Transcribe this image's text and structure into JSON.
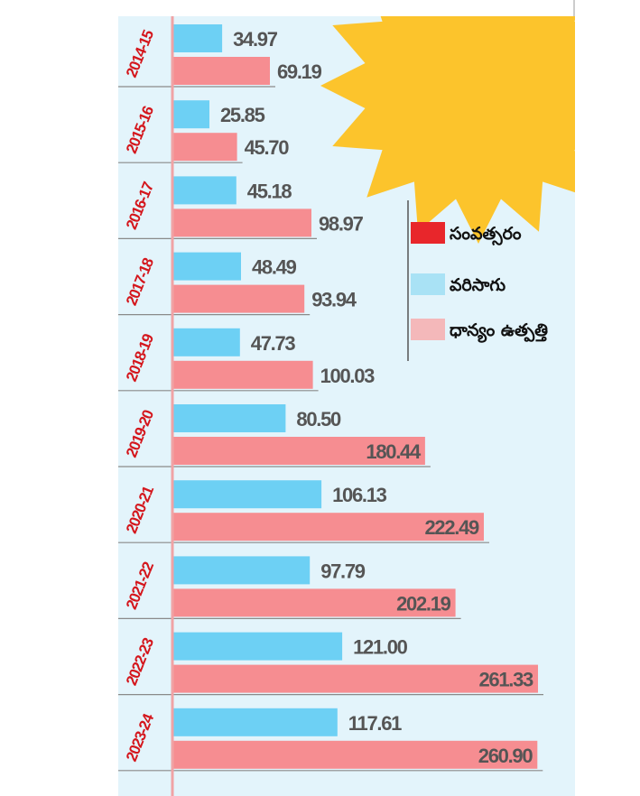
{
  "chart_data": {
    "type": "bar",
    "orientation": "horizontal",
    "categories": [
      "2014-15",
      "2015-16",
      "2016-17",
      "2017-18",
      "2018-19",
      "2019-20",
      "2020-21",
      "2021-22",
      "2022-23",
      "2023-24"
    ],
    "series": [
      {
        "name": "వరిసాగు",
        "color": "#6dd0f4",
        "values": [
          34.97,
          25.85,
          45.18,
          48.49,
          47.73,
          80.5,
          106.13,
          97.79,
          121.0,
          117.61
        ],
        "labels": [
          "34.97",
          "25.85",
          "45.18",
          "48.49",
          "47.73",
          "80.50",
          "106.13",
          "97.79",
          "121.00",
          "117.61"
        ]
      },
      {
        "name": "ధాన్యం ఉత్పత్తి",
        "color": "#f68d91",
        "values": [
          69.19,
          45.7,
          98.97,
          93.94,
          100.03,
          180.44,
          222.49,
          202.19,
          261.33,
          260.9
        ],
        "labels": [
          "69.19",
          "45.70",
          "98.97",
          "93.94",
          "100.03",
          "180.44",
          "222.49",
          "202.19",
          "261.33",
          "260.90"
        ]
      }
    ],
    "legend": [
      {
        "label": "సంవత్సరం",
        "color": "#e8262b"
      },
      {
        "label": "వరిసాగు",
        "color": "#a9e2f5"
      },
      {
        "label": "ధాన్యం ఉత్పత్తి",
        "color": "#f4b8ba"
      }
    ],
    "legend_position": "right",
    "xlim": [
      0,
      261.33
    ],
    "grid": false,
    "title": "",
    "xlabel": "",
    "ylabel": ""
  },
  "colors": {
    "panel_background": "#e3f4fb",
    "sun": "#fcc42c",
    "year_label": "#d4161c",
    "value_label": "#555555",
    "axis_line": "#f0a3a5",
    "separator": "#8a8a8a",
    "legend_divider": "#555555"
  }
}
